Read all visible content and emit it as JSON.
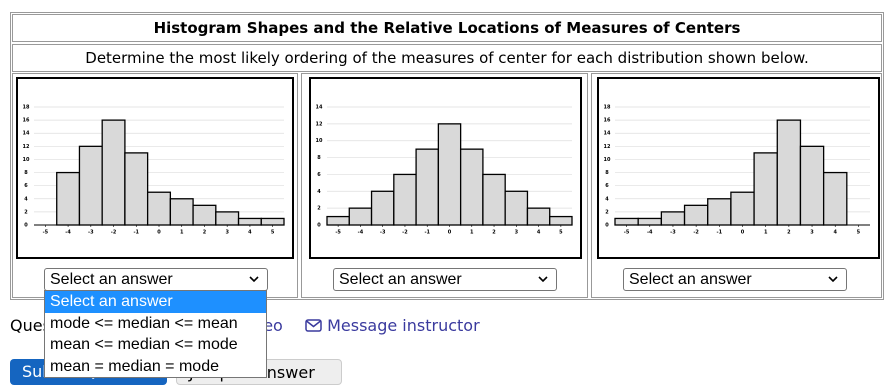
{
  "header": {
    "title": "Histogram Shapes and the Relative Locations of Measures of Centers",
    "instructions": "Determine the most likely ordering of the measures of center for each distribution shown below."
  },
  "histograms": [
    {
      "type": "histogram",
      "bins": [
        -4.5,
        -3.5,
        -2.5,
        -1.5,
        -0.5,
        0.5,
        1.5,
        2.5,
        3.5,
        4.5,
        5.5
      ],
      "values": [
        8,
        12,
        16,
        11,
        5,
        4,
        3,
        2,
        1,
        1
      ],
      "color": "#d9d9d9",
      "xlim": [
        -5.5,
        5.5
      ],
      "xticks": [
        -5,
        -4,
        -3,
        -2,
        -1,
        0,
        1,
        2,
        3,
        4,
        5
      ],
      "ylim": [
        0,
        18
      ],
      "yticks": [
        0,
        2,
        4,
        6,
        8,
        10,
        12,
        14,
        16,
        18
      ],
      "grid": true
    },
    {
      "type": "histogram",
      "bins": [
        -5.5,
        -4.5,
        -3.5,
        -2.5,
        -1.5,
        -0.5,
        0.5,
        1.5,
        2.5,
        3.5,
        4.5,
        5.5
      ],
      "values": [
        1,
        2,
        4,
        6,
        9,
        12,
        9,
        6,
        4,
        2,
        1
      ],
      "color": "#d9d9d9",
      "xlim": [
        -5.5,
        5.5
      ],
      "xticks": [
        -5,
        -4,
        -3,
        -2,
        -1,
        0,
        1,
        2,
        3,
        4,
        5
      ],
      "ylim": [
        0,
        14
      ],
      "yticks": [
        0,
        2,
        4,
        6,
        8,
        10,
        12,
        14
      ],
      "grid": true
    },
    {
      "type": "histogram",
      "bins": [
        -5.5,
        -4.5,
        -3.5,
        -2.5,
        -1.5,
        -0.5,
        0.5,
        1.5,
        2.5,
        3.5,
        4.5
      ],
      "values": [
        1,
        1,
        2,
        3,
        4,
        5,
        11,
        16,
        12,
        8
      ],
      "color": "#d9d9d9",
      "xlim": [
        -5.5,
        5.5
      ],
      "xticks": [
        -5,
        -4,
        -3,
        -2,
        -1,
        0,
        1,
        2,
        3,
        4,
        5
      ],
      "ylim": [
        0,
        18
      ],
      "yticks": [
        0,
        2,
        4,
        6,
        8,
        10,
        12,
        14,
        16,
        18
      ],
      "grid": true
    }
  ],
  "selects": [
    "Select an answer",
    "Select an answer",
    "Select an answer"
  ],
  "dropdown": {
    "options": [
      "Select an answer",
      "mode <= median <= mean",
      "mean <= median <= mode",
      "mean = median = mode"
    ]
  },
  "help": {
    "label": "Question Help:",
    "video": "Video",
    "message": "Message instructor"
  },
  "buttons": {
    "submit": "Submit Question",
    "jump": "Jump to Answer"
  }
}
